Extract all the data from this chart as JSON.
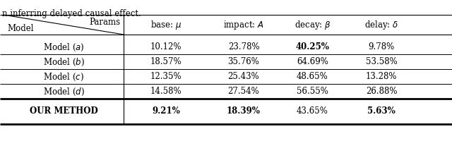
{
  "caption": "n inferring delayed causal effect.",
  "col_header_display": [
    "base: $\\mu$",
    "impact: $A$",
    "decay: $\\beta$",
    "delay: $\\delta$"
  ],
  "rows": [
    {
      "label": "Model ($a$)",
      "values": [
        "10.12%",
        "23.78%",
        "40.25%",
        "9.78%"
      ],
      "bold_cols": [
        2
      ],
      "label_bold": false
    },
    {
      "label": "Model ($b$)",
      "values": [
        "18.57%",
        "35.76%",
        "64.69%",
        "53.58%"
      ],
      "bold_cols": [],
      "label_bold": false
    },
    {
      "label": "Model ($c$)",
      "values": [
        "12.35%",
        "25.43%",
        "48.65%",
        "13.28%"
      ],
      "bold_cols": [],
      "label_bold": false
    },
    {
      "label": "Model ($d$)",
      "values": [
        "14.58%",
        "27.54%",
        "56.55%",
        "26.88%"
      ],
      "bold_cols": [],
      "label_bold": false
    },
    {
      "label": "OUR METHOD",
      "values": [
        "9.21%",
        "18.39%",
        "43.65%",
        "5.63%"
      ],
      "bold_cols": [
        0,
        1,
        3
      ],
      "label_bold": true
    }
  ],
  "figsize": [
    6.4,
    2.01
  ],
  "dpi": 100,
  "font_size": 8.5
}
